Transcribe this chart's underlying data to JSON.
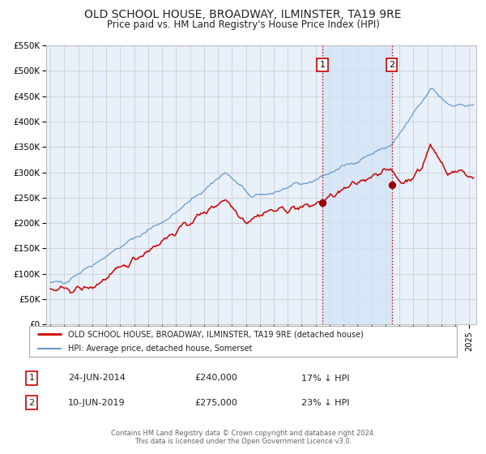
{
  "title": "OLD SCHOOL HOUSE, BROADWAY, ILMINSTER, TA19 9RE",
  "subtitle": "Price paid vs. HM Land Registry's House Price Index (HPI)",
  "background_color": "#ffffff",
  "plot_bg_color": "#e8f0fa",
  "grid_color": "#c8c8c8",
  "ylim": [
    0,
    550000
  ],
  "yticks": [
    0,
    50000,
    100000,
    150000,
    200000,
    250000,
    300000,
    350000,
    400000,
    450000,
    500000,
    550000
  ],
  "ytick_labels": [
    "£0",
    "£50K",
    "£100K",
    "£150K",
    "£200K",
    "£250K",
    "£300K",
    "£350K",
    "£400K",
    "£450K",
    "£500K",
    "£550K"
  ],
  "xmin": 1994.7,
  "xmax": 2025.5,
  "sale1_x": 2014.48,
  "sale1_y": 240000,
  "sale2_x": 2019.44,
  "sale2_y": 275000,
  "shade_color": "#d0e4f7",
  "shade_alpha": 0.7,
  "vline_color": "#cc0000",
  "legend_line1": "OLD SCHOOL HOUSE, BROADWAY, ILMINSTER, TA19 9RE (detached house)",
  "legend_line2": "HPI: Average price, detached house, Somerset",
  "legend_line1_color": "#cc0000",
  "legend_line2_color": "#6699cc",
  "annotation1": [
    "1",
    "24-JUN-2014",
    "£240,000",
    "17% ↓ HPI"
  ],
  "annotation2": [
    "2",
    "10-JUN-2019",
    "£275,000",
    "23% ↓ HPI"
  ],
  "footer1": "Contains HM Land Registry data © Crown copyright and database right 2024.",
  "footer2": "This data is licensed under the Open Government Licence v3.0."
}
